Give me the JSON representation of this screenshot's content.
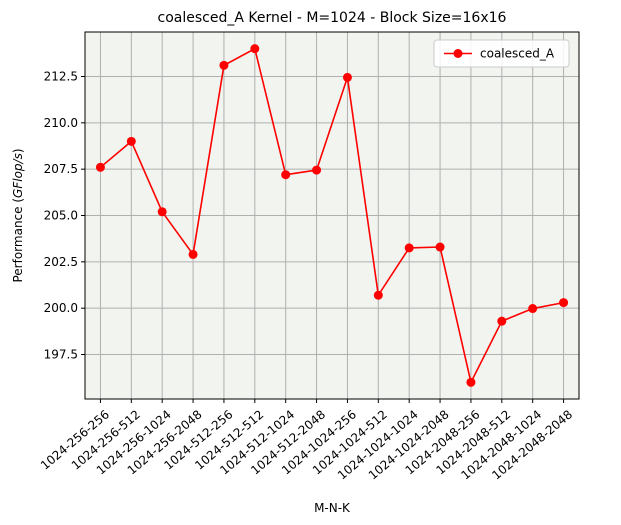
{
  "chart_data": {
    "type": "line",
    "title": "coalesced_A Kernel - M=1024 - Block Size=16x16",
    "xlabel": "M-N-K",
    "ylabel_prefix": "Performance (",
    "ylabel_italic": "GFlop/s",
    "ylabel_suffix": ")",
    "categories": [
      "1024-256-256",
      "1024-256-512",
      "1024-256-1024",
      "1024-256-2048",
      "1024-512-256",
      "1024-512-512",
      "1024-512-1024",
      "1024-512-2048",
      "1024-1024-256",
      "1024-1024-512",
      "1024-1024-1024",
      "1024-1024-2048",
      "1024-2048-256",
      "1024-2048-512",
      "1024-2048-1024",
      "1024-2048-2048"
    ],
    "series": [
      {
        "name": "coalesced_A",
        "color": "#ff0000",
        "marker": "circle",
        "values": [
          207.6,
          209.0,
          205.2,
          202.9,
          213.1,
          214.0,
          207.2,
          207.45,
          212.45,
          200.7,
          203.25,
          203.3,
          196.0,
          199.3,
          199.98,
          200.3
        ]
      }
    ],
    "yticks": [
      "197.5",
      "200.0",
      "202.5",
      "205.0",
      "207.5",
      "210.0",
      "212.5"
    ],
    "ylim": [
      195.1,
      214.9
    ],
    "grid": true,
    "legend_position": "upper-right",
    "background_color": "#f2f4ef",
    "grid_color": "#b0b0b0"
  }
}
